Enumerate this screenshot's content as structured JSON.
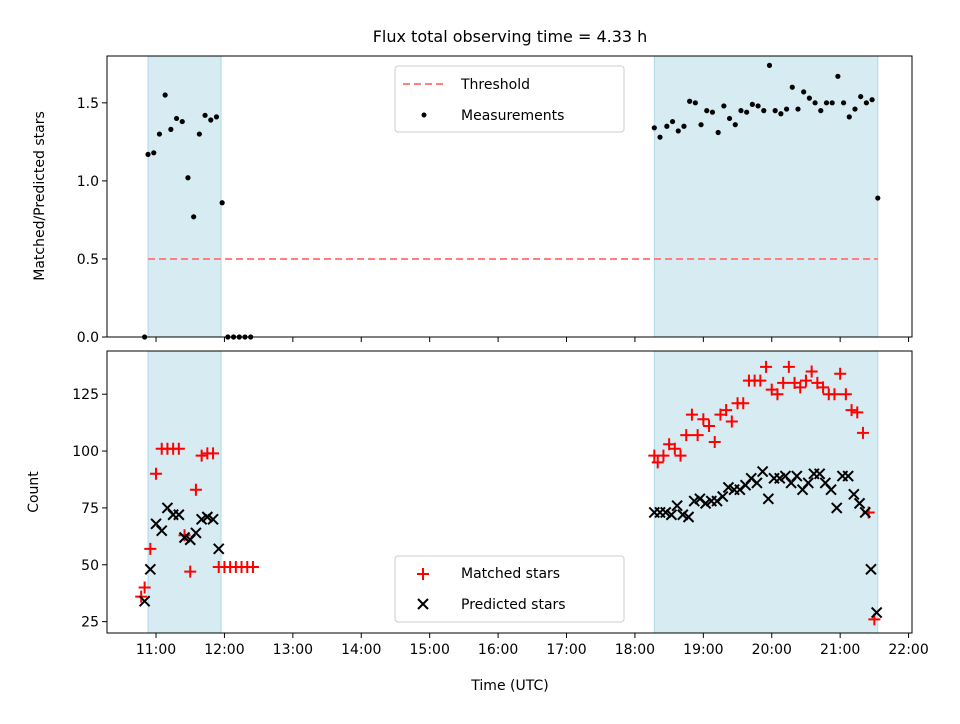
{
  "chart_data": [
    {
      "type": "scatter",
      "title": "Flux total observing time = 4.33 h",
      "ylabel": "Matched/Predicted stars",
      "xlabel": "",
      "ylim": [
        0,
        1.8
      ],
      "yticks": [
        "0.0",
        "0.5",
        "1.0",
        "1.5"
      ],
      "shaded_intervals": [
        [
          "10:53",
          "11:57"
        ],
        [
          "18:17",
          "21:33"
        ]
      ],
      "legend_position": "top-center",
      "colors": {
        "shade": "#add8e6",
        "threshold": "#ff7f7f",
        "measurements": "#000000"
      },
      "threshold": {
        "name": "Threshold",
        "y": 0.5,
        "x_range": [
          "10:53",
          "21:33"
        ]
      },
      "series": [
        {
          "name": "Measurements",
          "points": [
            [
              "10:50",
              0.0
            ],
            [
              "10:53",
              1.17
            ],
            [
              "10:58",
              1.18
            ],
            [
              "11:03",
              1.3
            ],
            [
              "11:08",
              1.55
            ],
            [
              "11:13",
              1.33
            ],
            [
              "11:18",
              1.4
            ],
            [
              "11:23",
              1.38
            ],
            [
              "11:28",
              1.02
            ],
            [
              "11:33",
              0.77
            ],
            [
              "11:38",
              1.3
            ],
            [
              "11:43",
              1.42
            ],
            [
              "11:48",
              1.39
            ],
            [
              "11:53",
              1.41
            ],
            [
              "11:58",
              0.86
            ],
            [
              "12:03",
              0.0
            ],
            [
              "12:08",
              0.0
            ],
            [
              "12:13",
              0.0
            ],
            [
              "12:18",
              0.0
            ],
            [
              "12:23",
              0.0
            ],
            [
              "18:17",
              1.34
            ],
            [
              "18:22",
              1.28
            ],
            [
              "18:28",
              1.35
            ],
            [
              "18:33",
              1.38
            ],
            [
              "18:38",
              1.32
            ],
            [
              "18:43",
              1.35
            ],
            [
              "18:48",
              1.51
            ],
            [
              "18:53",
              1.5
            ],
            [
              "18:58",
              1.36
            ],
            [
              "19:03",
              1.45
            ],
            [
              "19:08",
              1.44
            ],
            [
              "19:13",
              1.31
            ],
            [
              "19:18",
              1.48
            ],
            [
              "19:23",
              1.4
            ],
            [
              "19:28",
              1.36
            ],
            [
              "19:33",
              1.45
            ],
            [
              "19:38",
              1.44
            ],
            [
              "19:43",
              1.49
            ],
            [
              "19:48",
              1.48
            ],
            [
              "19:53",
              1.45
            ],
            [
              "19:58",
              1.74
            ],
            [
              "20:03",
              1.45
            ],
            [
              "20:08",
              1.43
            ],
            [
              "20:13",
              1.46
            ],
            [
              "20:18",
              1.6
            ],
            [
              "20:23",
              1.46
            ],
            [
              "20:28",
              1.57
            ],
            [
              "20:33",
              1.53
            ],
            [
              "20:38",
              1.5
            ],
            [
              "20:43",
              1.45
            ],
            [
              "20:48",
              1.5
            ],
            [
              "20:53",
              1.5
            ],
            [
              "20:58",
              1.67
            ],
            [
              "21:03",
              1.5
            ],
            [
              "21:08",
              1.41
            ],
            [
              "21:13",
              1.46
            ],
            [
              "21:18",
              1.54
            ],
            [
              "21:23",
              1.5
            ],
            [
              "21:28",
              1.52
            ],
            [
              "21:33",
              0.89
            ]
          ]
        }
      ]
    },
    {
      "type": "scatter",
      "title": "",
      "xlabel": "Time (UTC)",
      "ylabel": "Count",
      "xlim": [
        "10:17",
        "22:03"
      ],
      "ylim": [
        20,
        144
      ],
      "xticks": [
        "11:00",
        "12:00",
        "13:00",
        "14:00",
        "15:00",
        "16:00",
        "17:00",
        "18:00",
        "19:00",
        "20:00",
        "21:00",
        "22:00"
      ],
      "yticks": [
        "25",
        "50",
        "75",
        "100",
        "125"
      ],
      "shaded_intervals": [
        [
          "10:53",
          "11:57"
        ],
        [
          "18:17",
          "21:33"
        ]
      ],
      "legend_position": "bottom-center",
      "colors": {
        "matched": "#ff0000",
        "predicted": "#000000"
      },
      "series": [
        {
          "name": "Matched stars",
          "marker": "plus",
          "points": [
            [
              "10:47",
              36
            ],
            [
              "10:50",
              40
            ],
            [
              "10:55",
              57
            ],
            [
              "11:00",
              90
            ],
            [
              "11:05",
              101
            ],
            [
              "11:10",
              101
            ],
            [
              "11:15",
              101
            ],
            [
              "11:20",
              101
            ],
            [
              "11:25",
              63
            ],
            [
              "11:30",
              47
            ],
            [
              "11:35",
              83
            ],
            [
              "11:40",
              98
            ],
            [
              "11:45",
              99
            ],
            [
              "11:50",
              99
            ],
            [
              "11:55",
              49
            ],
            [
              "12:00",
              49
            ],
            [
              "12:05",
              49
            ],
            [
              "12:10",
              49
            ],
            [
              "12:15",
              49
            ],
            [
              "12:20",
              49
            ],
            [
              "12:25",
              49
            ],
            [
              "18:17",
              98
            ],
            [
              "18:20",
              95
            ],
            [
              "18:25",
              98
            ],
            [
              "18:30",
              103
            ],
            [
              "18:35",
              101
            ],
            [
              "18:40",
              98
            ],
            [
              "18:45",
              107
            ],
            [
              "18:50",
              116
            ],
            [
              "18:55",
              107
            ],
            [
              "19:00",
              114
            ],
            [
              "19:05",
              111
            ],
            [
              "19:10",
              104
            ],
            [
              "19:15",
              116
            ],
            [
              "19:20",
              118
            ],
            [
              "19:25",
              113
            ],
            [
              "19:30",
              121
            ],
            [
              "19:35",
              121
            ],
            [
              "19:40",
              131
            ],
            [
              "19:45",
              131
            ],
            [
              "19:50",
              131
            ],
            [
              "19:55",
              137
            ],
            [
              "20:00",
              127
            ],
            [
              "20:05",
              125
            ],
            [
              "20:10",
              130
            ],
            [
              "20:15",
              137
            ],
            [
              "20:20",
              130
            ],
            [
              "20:25",
              128
            ],
            [
              "20:30",
              131
            ],
            [
              "20:35",
              135
            ],
            [
              "20:40",
              130
            ],
            [
              "20:45",
              128
            ],
            [
              "20:50",
              125
            ],
            [
              "20:55",
              125
            ],
            [
              "21:00",
              134
            ],
            [
              "21:05",
              125
            ],
            [
              "21:10",
              118
            ],
            [
              "21:15",
              117
            ],
            [
              "21:20",
              108
            ],
            [
              "21:25",
              73
            ],
            [
              "21:30",
              26
            ]
          ]
        },
        {
          "name": "Predicted stars",
          "marker": "x",
          "points": [
            [
              "10:50",
              34
            ],
            [
              "10:55",
              48
            ],
            [
              "11:00",
              68
            ],
            [
              "11:05",
              65
            ],
            [
              "11:10",
              75
            ],
            [
              "11:15",
              72
            ],
            [
              "11:20",
              72
            ],
            [
              "11:25",
              62
            ],
            [
              "11:30",
              61
            ],
            [
              "11:35",
              64
            ],
            [
              "11:40",
              70
            ],
            [
              "11:45",
              71
            ],
            [
              "11:50",
              70
            ],
            [
              "11:55",
              57
            ],
            [
              "18:17",
              73
            ],
            [
              "18:22",
              73
            ],
            [
              "18:27",
              73
            ],
            [
              "18:32",
              72
            ],
            [
              "18:37",
              76
            ],
            [
              "18:42",
              72
            ],
            [
              "18:47",
              71
            ],
            [
              "18:52",
              78
            ],
            [
              "18:57",
              79
            ],
            [
              "19:02",
              77
            ],
            [
              "19:07",
              78
            ],
            [
              "19:12",
              78
            ],
            [
              "19:17",
              80
            ],
            [
              "19:22",
              84
            ],
            [
              "19:27",
              83
            ],
            [
              "19:32",
              83
            ],
            [
              "19:37",
              85
            ],
            [
              "19:42",
              88
            ],
            [
              "19:47",
              86
            ],
            [
              "19:52",
              91
            ],
            [
              "19:57",
              79
            ],
            [
              "20:02",
              88
            ],
            [
              "20:07",
              88
            ],
            [
              "20:12",
              89
            ],
            [
              "20:17",
              86
            ],
            [
              "20:22",
              89
            ],
            [
              "20:27",
              83
            ],
            [
              "20:32",
              86
            ],
            [
              "20:37",
              90
            ],
            [
              "20:42",
              90
            ],
            [
              "20:47",
              86
            ],
            [
              "20:52",
              83
            ],
            [
              "20:57",
              75
            ],
            [
              "21:02",
              89
            ],
            [
              "21:07",
              89
            ],
            [
              "21:12",
              81
            ],
            [
              "21:17",
              77
            ],
            [
              "21:22",
              73
            ],
            [
              "21:27",
              48
            ],
            [
              "21:32",
              29
            ]
          ]
        }
      ]
    }
  ]
}
